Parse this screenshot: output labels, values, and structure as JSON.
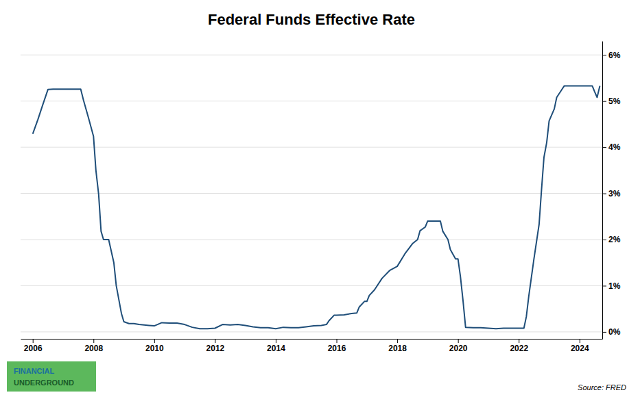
{
  "chart_data": {
    "type": "line",
    "title": "Federal Funds Effective Rate",
    "color": "#1f4e79",
    "grid": true,
    "annotations": [
      "Source: FRED",
      "FINANCIAL",
      "UNDERGROUND"
    ],
    "xlim": [
      2005.6,
      2024.75
    ],
    "xticks": [
      2006,
      2008,
      2010,
      2012,
      2014,
      2016,
      2018,
      2020,
      2022,
      2024
    ],
    "ylim": [
      -0.15,
      6.3
    ],
    "yticks": [
      {
        "value": 0,
        "label": "0%"
      },
      {
        "value": 1,
        "label": "1%"
      },
      {
        "value": 2,
        "label": "2%"
      },
      {
        "value": 3,
        "label": "3%"
      },
      {
        "value": 4,
        "label": "4%"
      },
      {
        "value": 5,
        "label": "5%"
      },
      {
        "value": 6,
        "label": "6%"
      }
    ],
    "x": [
      2006.0,
      2006.17,
      2006.33,
      2006.5,
      2006.67,
      2006.83,
      2007.0,
      2007.17,
      2007.33,
      2007.5,
      2007.58,
      2007.67,
      2007.83,
      2008.0,
      2008.08,
      2008.17,
      2008.25,
      2008.33,
      2008.5,
      2008.67,
      2008.75,
      2008.92,
      2009.0,
      2009.17,
      2009.33,
      2009.5,
      2009.67,
      2009.83,
      2010.0,
      2010.25,
      2010.5,
      2010.75,
      2011.0,
      2011.25,
      2011.5,
      2011.75,
      2012.0,
      2012.25,
      2012.5,
      2012.75,
      2013.0,
      2013.25,
      2013.5,
      2013.75,
      2014.0,
      2014.25,
      2014.5,
      2014.75,
      2015.0,
      2015.25,
      2015.5,
      2015.67,
      2015.75,
      2015.92,
      2016.0,
      2016.25,
      2016.5,
      2016.67,
      2016.75,
      2016.92,
      2017.0,
      2017.08,
      2017.25,
      2017.5,
      2017.75,
      2018.0,
      2018.25,
      2018.5,
      2018.67,
      2018.75,
      2018.92,
      2019.0,
      2019.25,
      2019.42,
      2019.5,
      2019.67,
      2019.75,
      2019.92,
      2020.0,
      2020.08,
      2020.17,
      2020.25,
      2020.5,
      2020.75,
      2021.0,
      2021.25,
      2021.5,
      2021.75,
      2022.0,
      2022.17,
      2022.25,
      2022.33,
      2022.5,
      2022.67,
      2022.75,
      2022.83,
      2022.92,
      2023.0,
      2023.17,
      2023.25,
      2023.42,
      2023.5,
      2023.75,
      2024.0,
      2024.25,
      2024.42,
      2024.5,
      2024.58,
      2024.67
    ],
    "values": [
      4.29,
      4.6,
      4.92,
      5.25,
      5.26,
      5.26,
      5.26,
      5.26,
      5.26,
      5.26,
      5.26,
      5.02,
      4.65,
      4.24,
      3.5,
      2.98,
      2.18,
      2.0,
      2.0,
      1.5,
      1.0,
      0.4,
      0.22,
      0.18,
      0.18,
      0.16,
      0.15,
      0.14,
      0.13,
      0.2,
      0.19,
      0.19,
      0.16,
      0.1,
      0.07,
      0.07,
      0.08,
      0.16,
      0.15,
      0.16,
      0.14,
      0.11,
      0.09,
      0.09,
      0.07,
      0.1,
      0.09,
      0.09,
      0.11,
      0.13,
      0.14,
      0.16,
      0.24,
      0.36,
      0.36,
      0.37,
      0.4,
      0.41,
      0.54,
      0.66,
      0.66,
      0.79,
      0.91,
      1.16,
      1.33,
      1.42,
      1.69,
      1.91,
      2.0,
      2.19,
      2.27,
      2.4,
      2.4,
      2.4,
      2.18,
      2.0,
      1.78,
      1.58,
      1.58,
      1.2,
      0.65,
      0.1,
      0.09,
      0.09,
      0.08,
      0.07,
      0.08,
      0.08,
      0.08,
      0.08,
      0.33,
      0.77,
      1.58,
      2.33,
      3.08,
      3.78,
      4.1,
      4.57,
      4.83,
      5.08,
      5.25,
      5.33,
      5.33,
      5.33,
      5.33,
      5.33,
      5.2,
      5.08,
      5.33
    ]
  }
}
